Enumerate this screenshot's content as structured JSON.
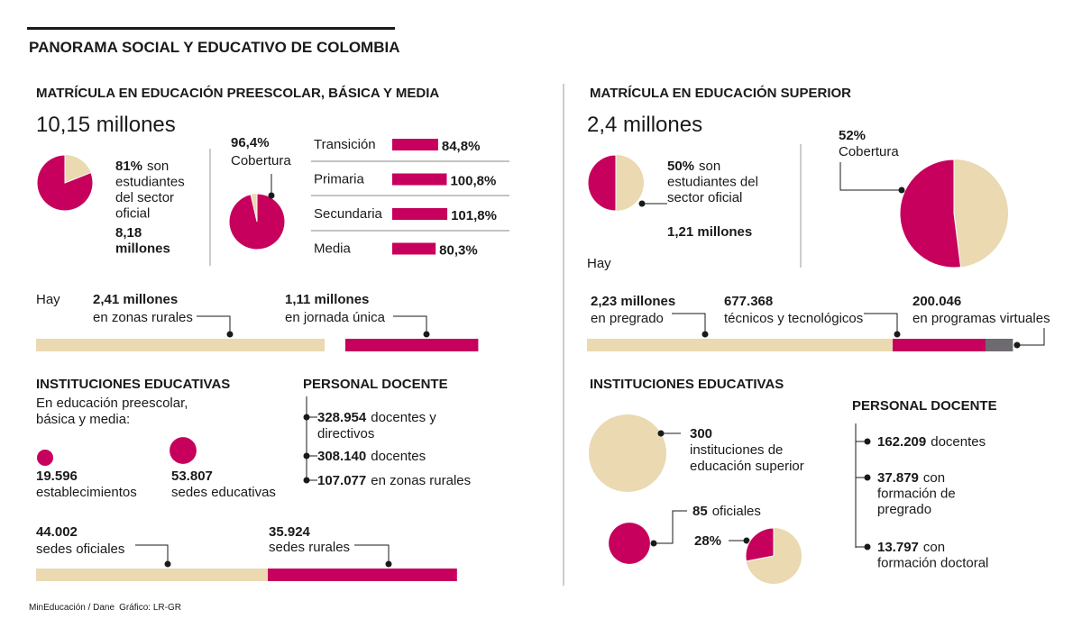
{
  "header": {
    "title": "PANORAMA SOCIAL Y EDUCATIVO DE COLOMBIA",
    "source": "MinEducación / Dane",
    "credit": "Gráfico: LR-GR"
  },
  "basica": {
    "title": "MATRÍCULA EN EDUCACIÓN PREESCOLAR, BÁSICA Y MEDIA",
    "total": "10,15 millones",
    "oficial": {
      "share": {
        "value": 81,
        "label": "81%"
      },
      "lines": [
        "son",
        "estudiantes",
        "del sector",
        "oficial"
      ],
      "count_lines": [
        "8,18",
        "millones"
      ]
    },
    "cobertura": {
      "share": {
        "value": 96.4,
        "label": "96,4%"
      },
      "text": "Cobertura"
    },
    "niveles": [
      {
        "name": "Transición",
        "rate": {
          "value": 84.8,
          "label": "84,8%"
        }
      },
      {
        "name": "Primaria",
        "rate": {
          "value": 100.8,
          "label": "100,8%"
        }
      },
      {
        "name": "Secundaria",
        "rate": {
          "value": 101.8,
          "label": "101,8%"
        }
      },
      {
        "name": "Media",
        "rate": {
          "value": 80.3,
          "label": "80,3%"
        }
      }
    ],
    "hay": "Hay",
    "rural": {
      "amount": {
        "value": 2.41,
        "label": "2,41 millones"
      },
      "text": "en zonas rurales"
    },
    "jornada": {
      "amount": {
        "value": 1.11,
        "label": "1,11 millones"
      },
      "text": "en jornada única"
    },
    "instituciones": {
      "title": "INSTITUCIONES EDUCATIVAS",
      "lines": [
        "En educación preescolar,",
        "básica y media:"
      ],
      "establecimientos": {
        "count": {
          "value": 19596,
          "label": "19.596"
        },
        "text": "establecimientos"
      },
      "sedes": {
        "count": {
          "value": 53807,
          "label": "53.807"
        },
        "text": "sedes educativas"
      }
    },
    "docentes": {
      "title": "PERSONAL DOCENTE",
      "items": [
        {
          "num": "328.954",
          "lines": [
            "docentes y",
            "directivos"
          ]
        },
        {
          "num": "308.140",
          "lines": [
            "docentes"
          ]
        },
        {
          "num": "107.077",
          "lines": [
            "en zonas rurales"
          ]
        }
      ]
    },
    "sedes_oficiales": {
      "count": {
        "value": 44002,
        "label": "44.002"
      },
      "text": "sedes oficiales"
    },
    "sedes_rurales": {
      "count": {
        "value": 35924,
        "label": "35.924"
      },
      "text": "sedes rurales"
    }
  },
  "superior": {
    "title": "MATRÍCULA EN EDUCACIÓN SUPERIOR",
    "total": "2,4 millones",
    "oficial": {
      "share": {
        "value": 50,
        "label": "50%"
      },
      "lines": [
        "son",
        "estudiantes del",
        "sector oficial"
      ],
      "count": "1,21 millones"
    },
    "hay": "Hay",
    "cobertura": {
      "share": {
        "value": 52,
        "label": "52%"
      },
      "text": "Cobertura"
    },
    "pregrado": {
      "amount": {
        "value": 2230000,
        "label": "2,23 millones"
      },
      "text": "en pregrado"
    },
    "tecnicos": {
      "amount": {
        "value": 677368,
        "label": "677.368"
      },
      "text": "técnicos y tecnológicos"
    },
    "virtuales": {
      "amount": {
        "value": 200046,
        "label": "200.046"
      },
      "text": "en programas virtuales"
    },
    "instituciones": {
      "title": "INSTITUCIONES EDUCATIVAS",
      "total": {
        "count": {
          "value": 300,
          "label": "300"
        },
        "lines": [
          "instituciones de",
          "educación superior"
        ]
      },
      "oficiales": {
        "count": {
          "value": 85,
          "label": "85"
        },
        "text": "oficiales"
      },
      "share": {
        "value": 28,
        "label": "28%"
      }
    },
    "docentes": {
      "title": "PERSONAL DOCENTE",
      "items": [
        {
          "num": "162.209",
          "lines": [
            "docentes"
          ]
        },
        {
          "num": "37.879",
          "lines": [
            "con",
            "formación de",
            "pregrado"
          ]
        },
        {
          "num": "13.797",
          "lines": [
            "con",
            "formación doctoral"
          ]
        }
      ]
    }
  }
}
